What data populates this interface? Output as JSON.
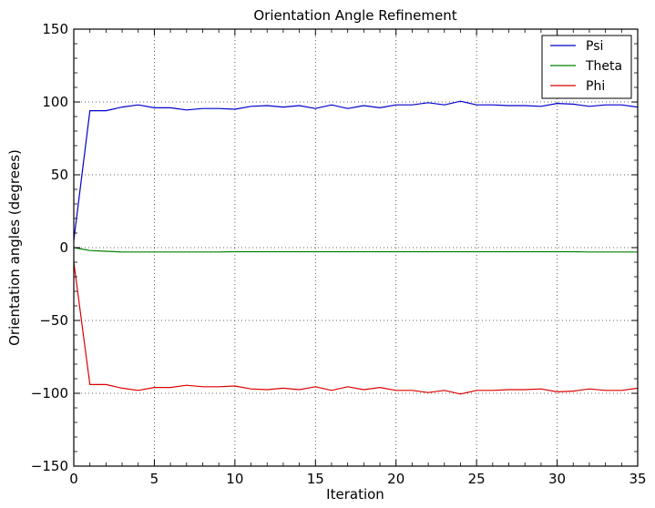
{
  "chart_data": {
    "type": "line",
    "title": "Orientation Angle Refinement",
    "xlabel": "Iteration",
    "ylabel": "Orientation angles (degrees)",
    "xlim": [
      0,
      35
    ],
    "ylim": [
      -150,
      150
    ],
    "xticks": [
      0,
      5,
      10,
      15,
      20,
      25,
      30,
      35
    ],
    "yticks": [
      -150,
      -100,
      -50,
      0,
      50,
      100,
      150
    ],
    "grid": true,
    "legend_position": "top-right",
    "x": [
      0,
      1,
      2,
      3,
      4,
      5,
      6,
      7,
      8,
      9,
      10,
      11,
      12,
      13,
      14,
      15,
      16,
      17,
      18,
      19,
      20,
      21,
      22,
      23,
      24,
      25,
      26,
      27,
      28,
      29,
      30,
      31,
      32,
      33,
      34,
      35
    ],
    "series": [
      {
        "name": "Psi",
        "color": "#0000cc",
        "values": [
          5,
          94,
          94,
          96.5,
          98,
          96,
          96,
          94.5,
          95.5,
          95.5,
          95,
          97,
          97.5,
          96.5,
          97.5,
          95.5,
          98,
          95.5,
          97.5,
          96,
          98,
          98,
          99.5,
          98,
          100.5,
          98,
          98,
          97.5,
          97.5,
          97,
          99,
          98.5,
          97,
          98,
          98,
          96.5
        ]
      },
      {
        "name": "Theta",
        "color": "#008000",
        "values": [
          0,
          -2,
          -2.5,
          -3,
          -3,
          -3,
          -3,
          -3,
          -3,
          -3,
          -2.8,
          -2.8,
          -2.8,
          -2.8,
          -2.8,
          -2.8,
          -2.8,
          -2.8,
          -2.8,
          -2.8,
          -2.8,
          -2.8,
          -2.8,
          -2.8,
          -2.8,
          -2.8,
          -2.8,
          -2.8,
          -2.8,
          -2.8,
          -2.8,
          -2.8,
          -3,
          -3,
          -3,
          -3
        ]
      },
      {
        "name": "Phi",
        "color": "#dd0000",
        "values": [
          -10,
          -94,
          -94,
          -96.5,
          -98,
          -96,
          -96,
          -94.5,
          -95.5,
          -95.5,
          -95,
          -97,
          -97.5,
          -96.5,
          -97.5,
          -95.5,
          -98,
          -95.5,
          -97.5,
          -96,
          -98,
          -98,
          -99.5,
          -98,
          -100.5,
          -98,
          -98,
          -97.5,
          -97.5,
          -97,
          -99,
          -98.5,
          -97,
          -98,
          -98,
          -96.5
        ]
      }
    ]
  }
}
